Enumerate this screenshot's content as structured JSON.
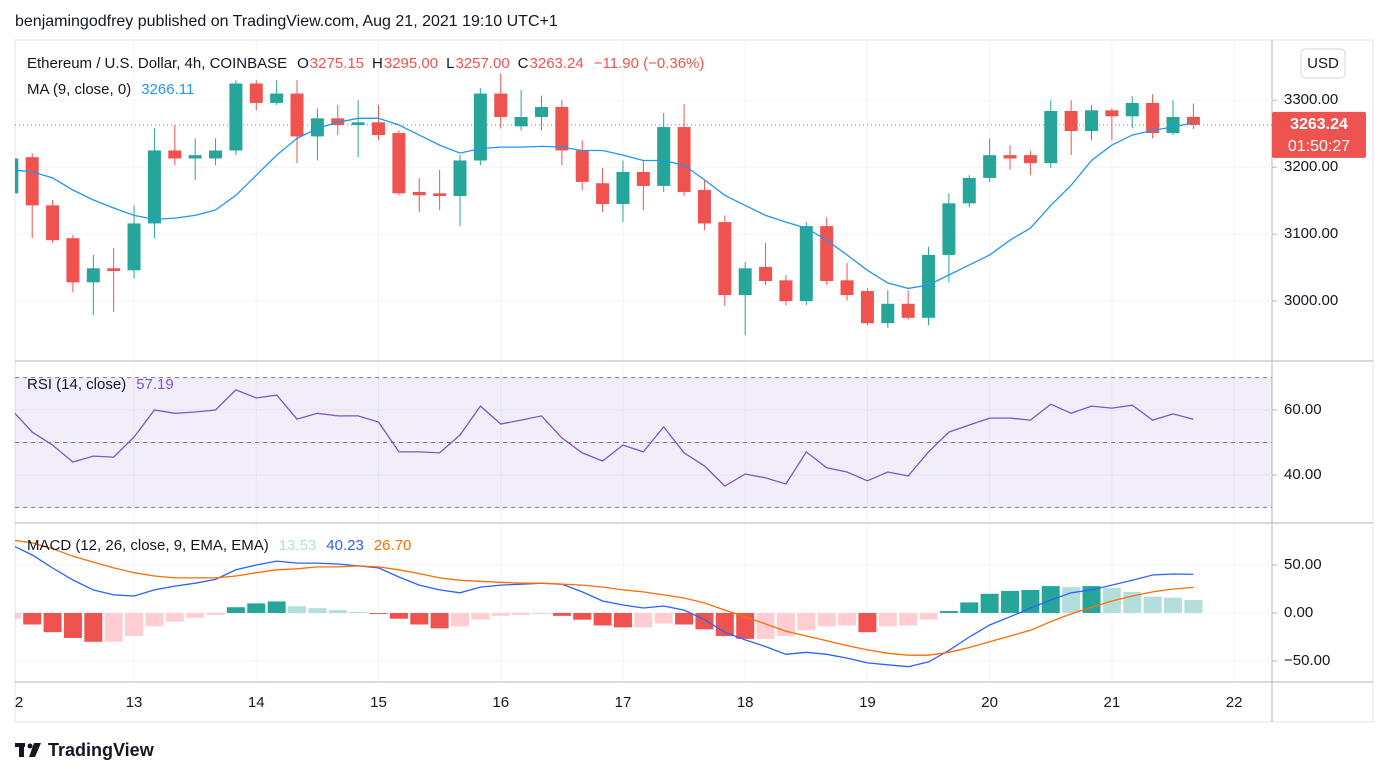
{
  "header": {
    "text": "benjamingodfrey published on TradingView.com, Aug 21, 2021 19:10 UTC+1"
  },
  "footer": {
    "brand": "TradingView"
  },
  "chart_data": [
    {
      "type": "candlestick",
      "symbol": "Ethereum / U.S. Dollar, 4h, COINBASE",
      "ohlc_legend": [
        {
          "key": "O",
          "value": "3275.15"
        },
        {
          "key": "H",
          "value": "3295.00"
        },
        {
          "key": "L",
          "value": "3257.00"
        },
        {
          "key": "C",
          "value": "3263.24"
        }
      ],
      "change_label": "−11.90 (−0.36%)",
      "currency": "USD",
      "last_price_label": "3263.24",
      "countdown": "01:50:27",
      "up_color": "#26a69a",
      "down_color": "#ef5350",
      "x": [
        12,
        12.1667,
        12.3333,
        12.5,
        12.6667,
        12.8333,
        13,
        13.1667,
        13.3333,
        13.5,
        13.6667,
        13.8333,
        14,
        14.1667,
        14.3333,
        14.5,
        14.6667,
        14.8333,
        15,
        15.1667,
        15.3333,
        15.5,
        15.6667,
        15.8333,
        16,
        16.1667,
        16.3333,
        16.5,
        16.6667,
        16.8333,
        17,
        17.1667,
        17.3333,
        17.5,
        17.6667,
        17.8333,
        18,
        18.1667,
        18.3333,
        18.5,
        18.6667,
        18.8333,
        19,
        19.1667,
        19.3333,
        19.5,
        19.6667,
        19.8333,
        20,
        20.1667,
        20.3333,
        20.5,
        20.6667,
        20.8333,
        21,
        21.1667,
        21.3333,
        21.5,
        21.6667
      ],
      "open": [
        3161,
        3215,
        3143,
        3094,
        3028,
        3049,
        3046,
        3116,
        3225,
        3213,
        3213,
        3225,
        3325,
        3296,
        3310,
        3246,
        3273,
        3263,
        3267,
        3251,
        3163,
        3161,
        3157,
        3210,
        3310,
        3261,
        3275,
        3290,
        3225,
        3176,
        3145,
        3193,
        3172,
        3260,
        3166,
        3118,
        3009,
        3051,
        3031,
        3000,
        3112,
        3031,
        3015,
        2967,
        2996,
        2975,
        3069,
        3146,
        3184,
        3218,
        3218,
        3206,
        3284,
        3254,
        3285,
        3276,
        3296,
        3251,
        3275.15
      ],
      "high": [
        3220,
        3221,
        3151,
        3099,
        3069,
        3079,
        3143,
        3258,
        3263,
        3243,
        3243,
        3330,
        3330,
        3330,
        3330,
        3288,
        3293,
        3300,
        3293,
        3255,
        3184,
        3196,
        3218,
        3318,
        3340,
        3315,
        3307,
        3300,
        3240,
        3199,
        3210,
        3210,
        3281,
        3294,
        3181,
        3128,
        3058,
        3087,
        3039,
        3118,
        3125,
        3057,
        3019,
        3016,
        3016,
        3081,
        3161,
        3188,
        3243,
        3233,
        3225,
        3300,
        3300,
        3293,
        3288,
        3306,
        3309,
        3300,
        3295
      ],
      "low": [
        3155,
        3094,
        3087,
        3013,
        2979,
        2984,
        3034,
        3094,
        3203,
        3181,
        3203,
        3218,
        3285,
        3293,
        3206,
        3210,
        3248,
        3215,
        3240,
        3158,
        3133,
        3136,
        3112,
        3203,
        3258,
        3255,
        3255,
        3203,
        3166,
        3133,
        3118,
        3136,
        3163,
        3157,
        3106,
        2993,
        2949,
        3024,
        2994,
        2994,
        3024,
        3001,
        2964,
        2960,
        2972,
        2964,
        3028,
        3140,
        3178,
        3196,
        3188,
        3199,
        3218,
        3240,
        3240,
        3258,
        3243,
        3248,
        3257
      ],
      "close": [
        3213,
        3143,
        3091,
        3028,
        3049,
        3045,
        3116,
        3225,
        3213,
        3218,
        3225,
        3325,
        3296,
        3310,
        3246,
        3273,
        3263,
        3267,
        3248,
        3161,
        3158,
        3157,
        3210,
        3310,
        3275,
        3275,
        3290,
        3225,
        3178,
        3145,
        3193,
        3172,
        3260,
        3163,
        3116,
        3009,
        3049,
        3030,
        3000,
        3112,
        3030,
        3009,
        2967,
        2996,
        2975,
        3069,
        3146,
        3184,
        3218,
        3213,
        3206,
        3284,
        3254,
        3285,
        3276,
        3296,
        3251,
        3275,
        3263.24
      ],
      "series": [
        {
          "name": "MA (9, close, 0)",
          "color": "#2196f3",
          "legend_value": "3266.11",
          "values": [
            3196,
            3193,
            3184,
            3166,
            3151,
            3139,
            3128,
            3122,
            3124,
            3128,
            3136,
            3158,
            3188,
            3218,
            3243,
            3258,
            3267,
            3273,
            3273,
            3263,
            3248,
            3233,
            3221,
            3228,
            3230,
            3230,
            3231,
            3230,
            3225,
            3225,
            3218,
            3210,
            3210,
            3203,
            3181,
            3158,
            3143,
            3128,
            3118,
            3109,
            3091,
            3069,
            3046,
            3027,
            3019,
            3024,
            3039,
            3054,
            3069,
            3091,
            3109,
            3143,
            3173,
            3210,
            3233,
            3248,
            3255,
            3260,
            3266.11
          ]
        }
      ],
      "xlim": [
        12.026,
        22.31
      ],
      "xticks": [
        {
          "value": 12,
          "label": "2"
        },
        13,
        14,
        15,
        16,
        17,
        18,
        19,
        20,
        21,
        22
      ],
      "ylim": [
        2912,
        3390
      ],
      "yticks": [
        {
          "value": 3300,
          "label": "3300.00"
        },
        {
          "value": 3200,
          "label": "3200.00"
        },
        {
          "value": 3100,
          "label": "3100.00"
        },
        {
          "value": 3000,
          "label": "3000.00"
        }
      ],
      "grid": true
    },
    {
      "type": "line",
      "title": "RSI (14, close)",
      "series": [
        {
          "color": "#7e57c2",
          "legend_value": "57.19",
          "values": [
            60,
            53.2,
            49.2,
            44,
            45.8,
            45.5,
            51.7,
            60,
            59,
            59.4,
            60,
            66.2,
            63.7,
            64.6,
            57.2,
            59,
            58.2,
            58.2,
            56.3,
            47.1,
            47.1,
            46.8,
            52.3,
            61.2,
            55.7,
            56.9,
            58.2,
            51.4,
            46.8,
            44.3,
            49.2,
            47.1,
            54.8,
            46.8,
            42.8,
            36.6,
            40.3,
            39.1,
            37.2,
            47.1,
            42.2,
            40.9,
            38.2,
            40.9,
            39.7,
            47.1,
            53.2,
            55.4,
            57.5,
            57.5,
            56.9,
            61.8,
            59,
            61.2,
            60.6,
            61.5,
            56.9,
            58.8,
            57.19
          ]
        }
      ],
      "bands": [
        70,
        50,
        30
      ],
      "band_color": "#7e57c2",
      "ylim": [
        25.5,
        74.8
      ],
      "yticks": [
        {
          "value": 60,
          "label": "60.00"
        },
        {
          "value": 40,
          "label": "40.00"
        }
      ],
      "grid": true
    },
    {
      "type": "macd",
      "title": "MACD (12, 26, close, 9, EMA, EMA)",
      "series": [
        {
          "type": "histogram",
          "colors": [
            "#26a69a",
            "#b2dfdb",
            "#ffcdd2",
            "#ef5350"
          ],
          "legend_value": "13.53",
          "values": [
            -6,
            -12,
            -20,
            -26,
            -30,
            -30,
            -24,
            -14,
            -9,
            -5,
            -2,
            6,
            10,
            12,
            7,
            5,
            3,
            1,
            -1,
            -6,
            -12,
            -16,
            -14,
            -7,
            -3,
            -2,
            -1,
            -3,
            -7,
            -13,
            -15,
            -15,
            -11,
            -12,
            -17,
            -24,
            -27,
            -27,
            -24,
            -18,
            -14,
            -13,
            -20,
            -14,
            -13,
            -7,
            2,
            11,
            20,
            23,
            24,
            28,
            27,
            28,
            26,
            22,
            17,
            16,
            13.53
          ]
        },
        {
          "type": "line",
          "color": "#2962ff",
          "legend_value": "40.23",
          "values": [
            70.8,
            60.4,
            46.9,
            34.4,
            24,
            18.8,
            17.7,
            24,
            28,
            31,
            35,
            45,
            50,
            54,
            52,
            52,
            51,
            49,
            47,
            37.5,
            29,
            24,
            21,
            27,
            29,
            30,
            31,
            30,
            22,
            12.5,
            8.3,
            5.2,
            7.3,
            3,
            -7,
            -20,
            -28,
            -35,
            -43,
            -41,
            -43,
            -47,
            -52,
            -54,
            -56,
            -51,
            -39,
            -25,
            -12.5,
            -4,
            5,
            13.5,
            21,
            24,
            29,
            34,
            39.6,
            40.6,
            40.23
          ]
        },
        {
          "type": "line",
          "color": "#ff6d00",
          "legend_value": "26.70",
          "values": [
            76,
            73,
            67,
            59,
            53,
            47,
            42,
            38.5,
            36.5,
            36.5,
            36.5,
            38.5,
            42,
            45,
            46,
            48,
            48,
            49,
            48,
            45,
            41,
            36.5,
            34,
            33,
            32,
            31,
            31,
            30,
            29,
            27,
            24,
            22,
            18.8,
            15.6,
            10.4,
            3,
            -4,
            -11.5,
            -19,
            -24,
            -29,
            -34,
            -38.5,
            -42,
            -44,
            -44,
            -41,
            -36,
            -30,
            -24,
            -18,
            -9,
            -1,
            6,
            12.5,
            17.7,
            22,
            25,
            26.7
          ]
        }
      ],
      "ylim": [
        -71.9,
        92.7
      ],
      "yticks": [
        {
          "value": 50,
          "label": "50.00"
        },
        {
          "value": 0,
          "label": "0.00"
        },
        {
          "value": -50,
          "label": "−50.00"
        }
      ],
      "grid": true
    }
  ]
}
